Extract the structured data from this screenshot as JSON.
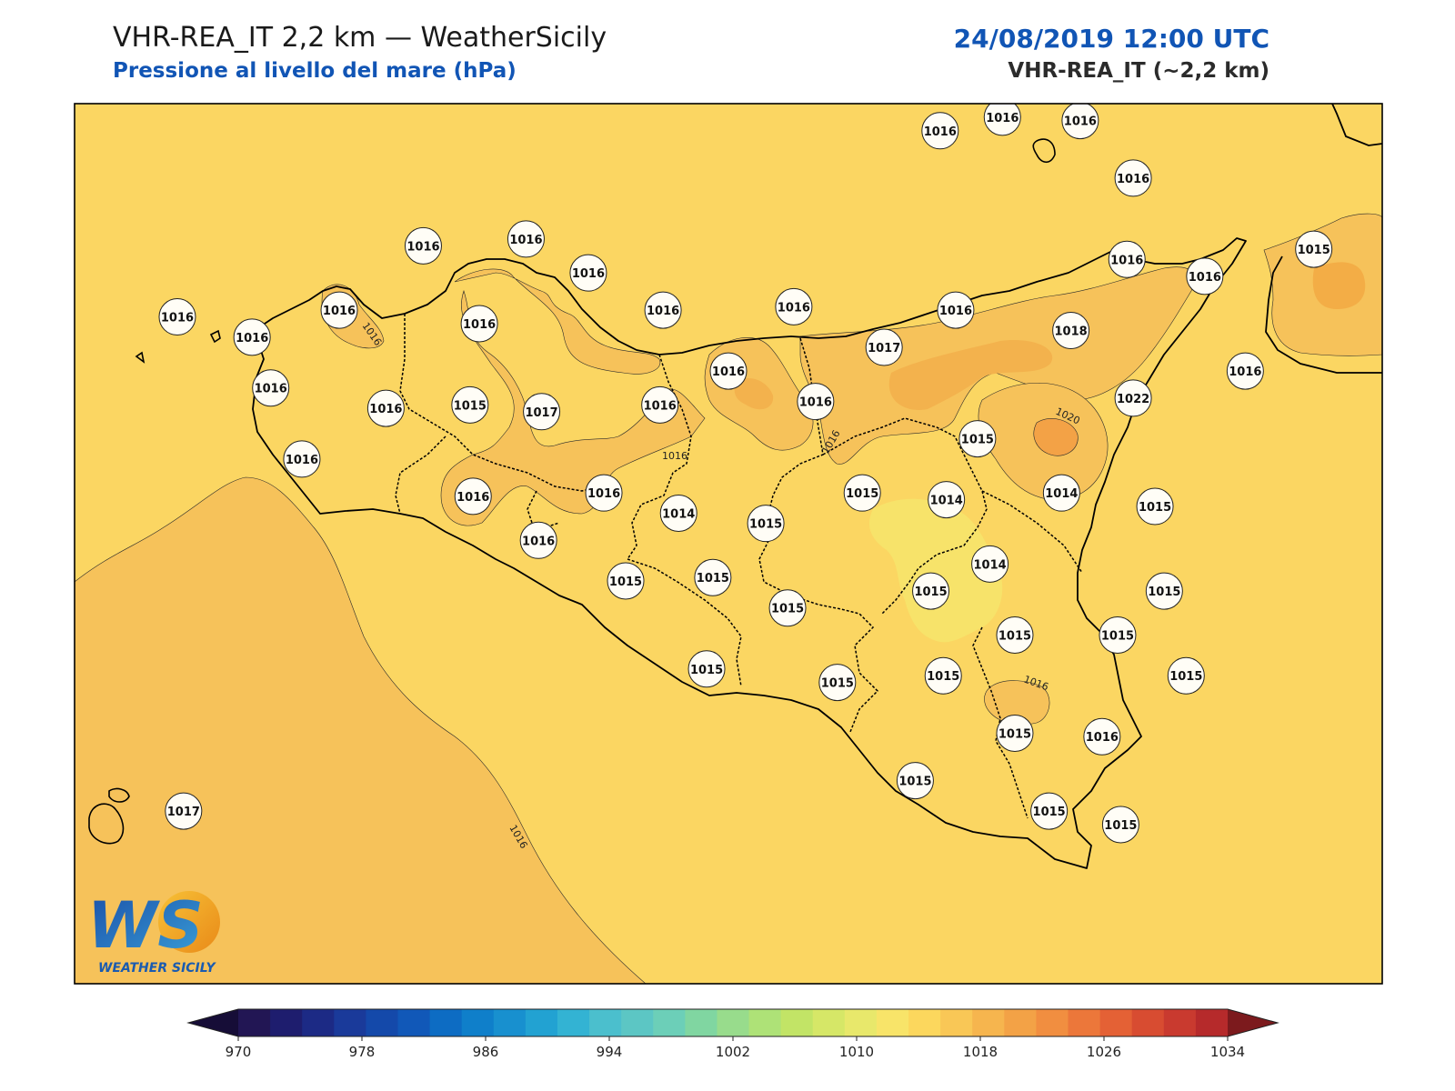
{
  "header": {
    "title": "VHR-REA_IT 2,2 km — WeatherSicily",
    "subtitle": "Pressione al livello del mare (hPa)",
    "datetime": "24/08/2019 12:00 UTC",
    "model": "VHR-REA_IT (~2,2 km)"
  },
  "map": {
    "field": "mslp",
    "background_level_hPa": 1016,
    "isoline_labels": [
      "1016",
      "1016",
      "1016",
      "1016",
      "1016",
      "1016",
      "1020"
    ],
    "stations": [
      {
        "value": "1016",
        "lon": 14.38,
        "lat": 38.52
      },
      {
        "value": "1016",
        "lon": 14.58,
        "lat": 38.56
      },
      {
        "value": "1016",
        "lon": 14.83,
        "lat": 38.55
      },
      {
        "value": "1016",
        "lon": 15.0,
        "lat": 38.38
      },
      {
        "value": "1016",
        "lon": 12.72,
        "lat": 38.18
      },
      {
        "value": "1016",
        "lon": 13.05,
        "lat": 38.2
      },
      {
        "value": "1016",
        "lon": 13.25,
        "lat": 38.1
      },
      {
        "value": "1016",
        "lon": 11.93,
        "lat": 37.97
      },
      {
        "value": "1016",
        "lon": 12.17,
        "lat": 37.91
      },
      {
        "value": "1016",
        "lon": 12.45,
        "lat": 37.99
      },
      {
        "value": "1016",
        "lon": 12.9,
        "lat": 37.95
      },
      {
        "value": "1016",
        "lon": 13.49,
        "lat": 37.99
      },
      {
        "value": "1016",
        "lon": 13.91,
        "lat": 38.0
      },
      {
        "value": "1016",
        "lon": 14.43,
        "lat": 37.99
      },
      {
        "value": "1016",
        "lon": 14.98,
        "lat": 38.14
      },
      {
        "value": "1016",
        "lon": 15.23,
        "lat": 38.09
      },
      {
        "value": "1015",
        "lon": 15.58,
        "lat": 38.17
      },
      {
        "value": "1018",
        "lon": 14.8,
        "lat": 37.93
      },
      {
        "value": "1017",
        "lon": 14.2,
        "lat": 37.88
      },
      {
        "value": "1016",
        "lon": 15.36,
        "lat": 37.81
      },
      {
        "value": "1016",
        "lon": 12.23,
        "lat": 37.76
      },
      {
        "value": "1016",
        "lon": 12.6,
        "lat": 37.7
      },
      {
        "value": "1015",
        "lon": 12.87,
        "lat": 37.71
      },
      {
        "value": "1017",
        "lon": 13.1,
        "lat": 37.69
      },
      {
        "value": "1016",
        "lon": 13.48,
        "lat": 37.71
      },
      {
        "value": "1016",
        "lon": 13.7,
        "lat": 37.81
      },
      {
        "value": "1016",
        "lon": 13.98,
        "lat": 37.72
      },
      {
        "value": "1022",
        "lon": 15.0,
        "lat": 37.73
      },
      {
        "value": "1015",
        "lon": 14.5,
        "lat": 37.61
      },
      {
        "value": "1016",
        "lon": 12.33,
        "lat": 37.55
      },
      {
        "value": "1016",
        "lon": 12.88,
        "lat": 37.44
      },
      {
        "value": "1016",
        "lon": 13.3,
        "lat": 37.45
      },
      {
        "value": "1015",
        "lon": 14.13,
        "lat": 37.45
      },
      {
        "value": "1014",
        "lon": 14.4,
        "lat": 37.43
      },
      {
        "value": "1014",
        "lon": 14.77,
        "lat": 37.45
      },
      {
        "value": "1015",
        "lon": 15.07,
        "lat": 37.41
      },
      {
        "value": "1014",
        "lon": 13.54,
        "lat": 37.39
      },
      {
        "value": "1015",
        "lon": 13.82,
        "lat": 37.36
      },
      {
        "value": "1016",
        "lon": 13.09,
        "lat": 37.31
      },
      {
        "value": "1015",
        "lon": 13.37,
        "lat": 37.19
      },
      {
        "value": "1015",
        "lon": 13.65,
        "lat": 37.2
      },
      {
        "value": "1014",
        "lon": 14.54,
        "lat": 37.24
      },
      {
        "value": "1015",
        "lon": 14.35,
        "lat": 37.16
      },
      {
        "value": "1015",
        "lon": 15.1,
        "lat": 37.16
      },
      {
        "value": "1015",
        "lon": 13.89,
        "lat": 37.11
      },
      {
        "value": "1015",
        "lon": 14.95,
        "lat": 37.03
      },
      {
        "value": "1015",
        "lon": 14.62,
        "lat": 37.03
      },
      {
        "value": "1015",
        "lon": 15.17,
        "lat": 36.91
      },
      {
        "value": "1015",
        "lon": 13.63,
        "lat": 36.93
      },
      {
        "value": "1015",
        "lon": 14.05,
        "lat": 36.89
      },
      {
        "value": "1015",
        "lon": 14.39,
        "lat": 36.91
      },
      {
        "value": "1015",
        "lon": 14.62,
        "lat": 36.74
      },
      {
        "value": "1016",
        "lon": 14.9,
        "lat": 36.73
      },
      {
        "value": "1015",
        "lon": 14.3,
        "lat": 36.6
      },
      {
        "value": "1015",
        "lon": 14.73,
        "lat": 36.51
      },
      {
        "value": "1015",
        "lon": 14.96,
        "lat": 36.47
      },
      {
        "value": "1017",
        "lon": 11.95,
        "lat": 36.51
      }
    ]
  },
  "colorbar": {
    "label": "hPa",
    "ticks": [
      "970",
      "978",
      "986",
      "994",
      "1002",
      "1010",
      "1018",
      "1026",
      "1034"
    ],
    "colors": [
      "#221654",
      "#1e1d6e",
      "#1c2a85",
      "#1a3a9a",
      "#1449aa",
      "#1158b8",
      "#0d6cc3",
      "#0f7fca",
      "#1890cf",
      "#22a2d2",
      "#33b3d3",
      "#4bbfcd",
      "#5cc6c4",
      "#6ccfb8",
      "#80d6a1",
      "#98dc8c",
      "#aee277",
      "#c2e466",
      "#d6e767",
      "#e8e86b",
      "#f8e469",
      "#fcd75d",
      "#f9c756",
      "#f6b54e",
      "#f3a246",
      "#f18e40",
      "#ec773a",
      "#e46135",
      "#d84c31",
      "#c93a2f",
      "#b62a2b"
    ],
    "under_color": "#160d37",
    "over_color": "#7c1a1d"
  },
  "logo": {
    "letters": "WS",
    "name": "WEATHER SICILY"
  }
}
